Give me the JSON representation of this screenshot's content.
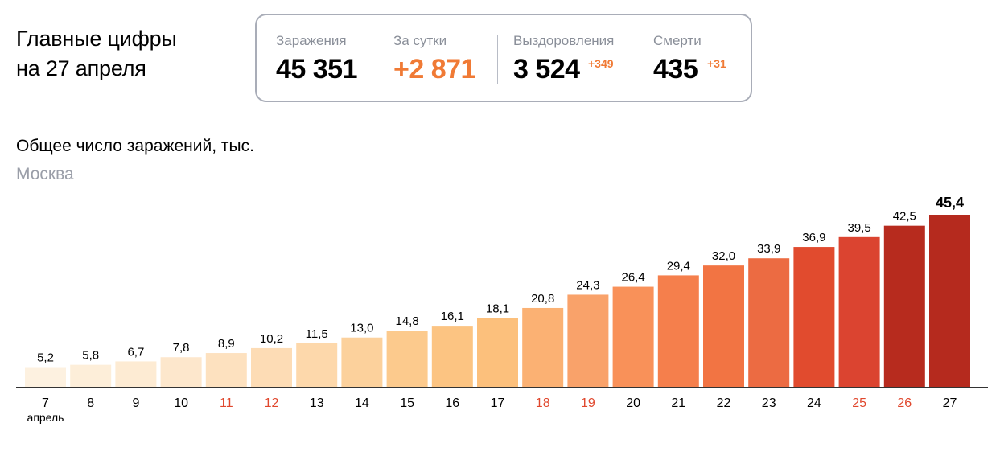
{
  "headline": {
    "line1": "Главные цифры",
    "line2": "на 27 апреля"
  },
  "stats": {
    "infections": {
      "label": "Заражения",
      "value": "45 351"
    },
    "daily": {
      "label": "За сутки",
      "value": "+2 871"
    },
    "recovered": {
      "label": "Выздоровления",
      "value": "3 524",
      "delta": "+349"
    },
    "deaths": {
      "label": "Смерти",
      "value": "435",
      "delta": "+31"
    },
    "accent_color": "#f07a35"
  },
  "chart_data": {
    "type": "bar",
    "title": "Общее число заражений, тыс.",
    "subtitle": "Москва",
    "month_label": "апрель",
    "categories": [
      "7",
      "8",
      "9",
      "10",
      "11",
      "12",
      "13",
      "14",
      "15",
      "16",
      "17",
      "18",
      "19",
      "20",
      "21",
      "22",
      "23",
      "24",
      "25",
      "26",
      "27"
    ],
    "values": [
      5.2,
      5.8,
      6.7,
      7.8,
      8.9,
      10.2,
      11.5,
      13.0,
      14.8,
      16.1,
      18.1,
      20.8,
      24.3,
      26.4,
      29.4,
      32.0,
      33.9,
      36.9,
      39.5,
      42.5,
      45.4
    ],
    "value_labels": [
      "5,2",
      "5,8",
      "6,7",
      "7,8",
      "8,9",
      "10,2",
      "11,5",
      "13,0",
      "14,8",
      "16,1",
      "18,1",
      "20,8",
      "24,3",
      "26,4",
      "29,4",
      "32,0",
      "33,9",
      "36,9",
      "39,5",
      "42,5",
      "45,4"
    ],
    "weekend_categories": [
      "11",
      "12",
      "18",
      "19",
      "25",
      "26"
    ],
    "bar_colors": [
      "#fdf1e0",
      "#fdeed9",
      "#fdebd3",
      "#fde7cc",
      "#fde1bf",
      "#fddcb5",
      "#fdd8ab",
      "#fcd19c",
      "#fcca8d",
      "#fcc482",
      "#fcc07c",
      "#fbb173",
      "#f9a26a",
      "#f99159",
      "#f57f4c",
      "#f27443",
      "#ec6b42",
      "#e14b2e",
      "#db4430",
      "#b72b1e",
      "#b52a1e"
    ],
    "weekend_label_color": "#e0472d",
    "ylim": [
      0,
      45.4
    ],
    "grid": false
  }
}
